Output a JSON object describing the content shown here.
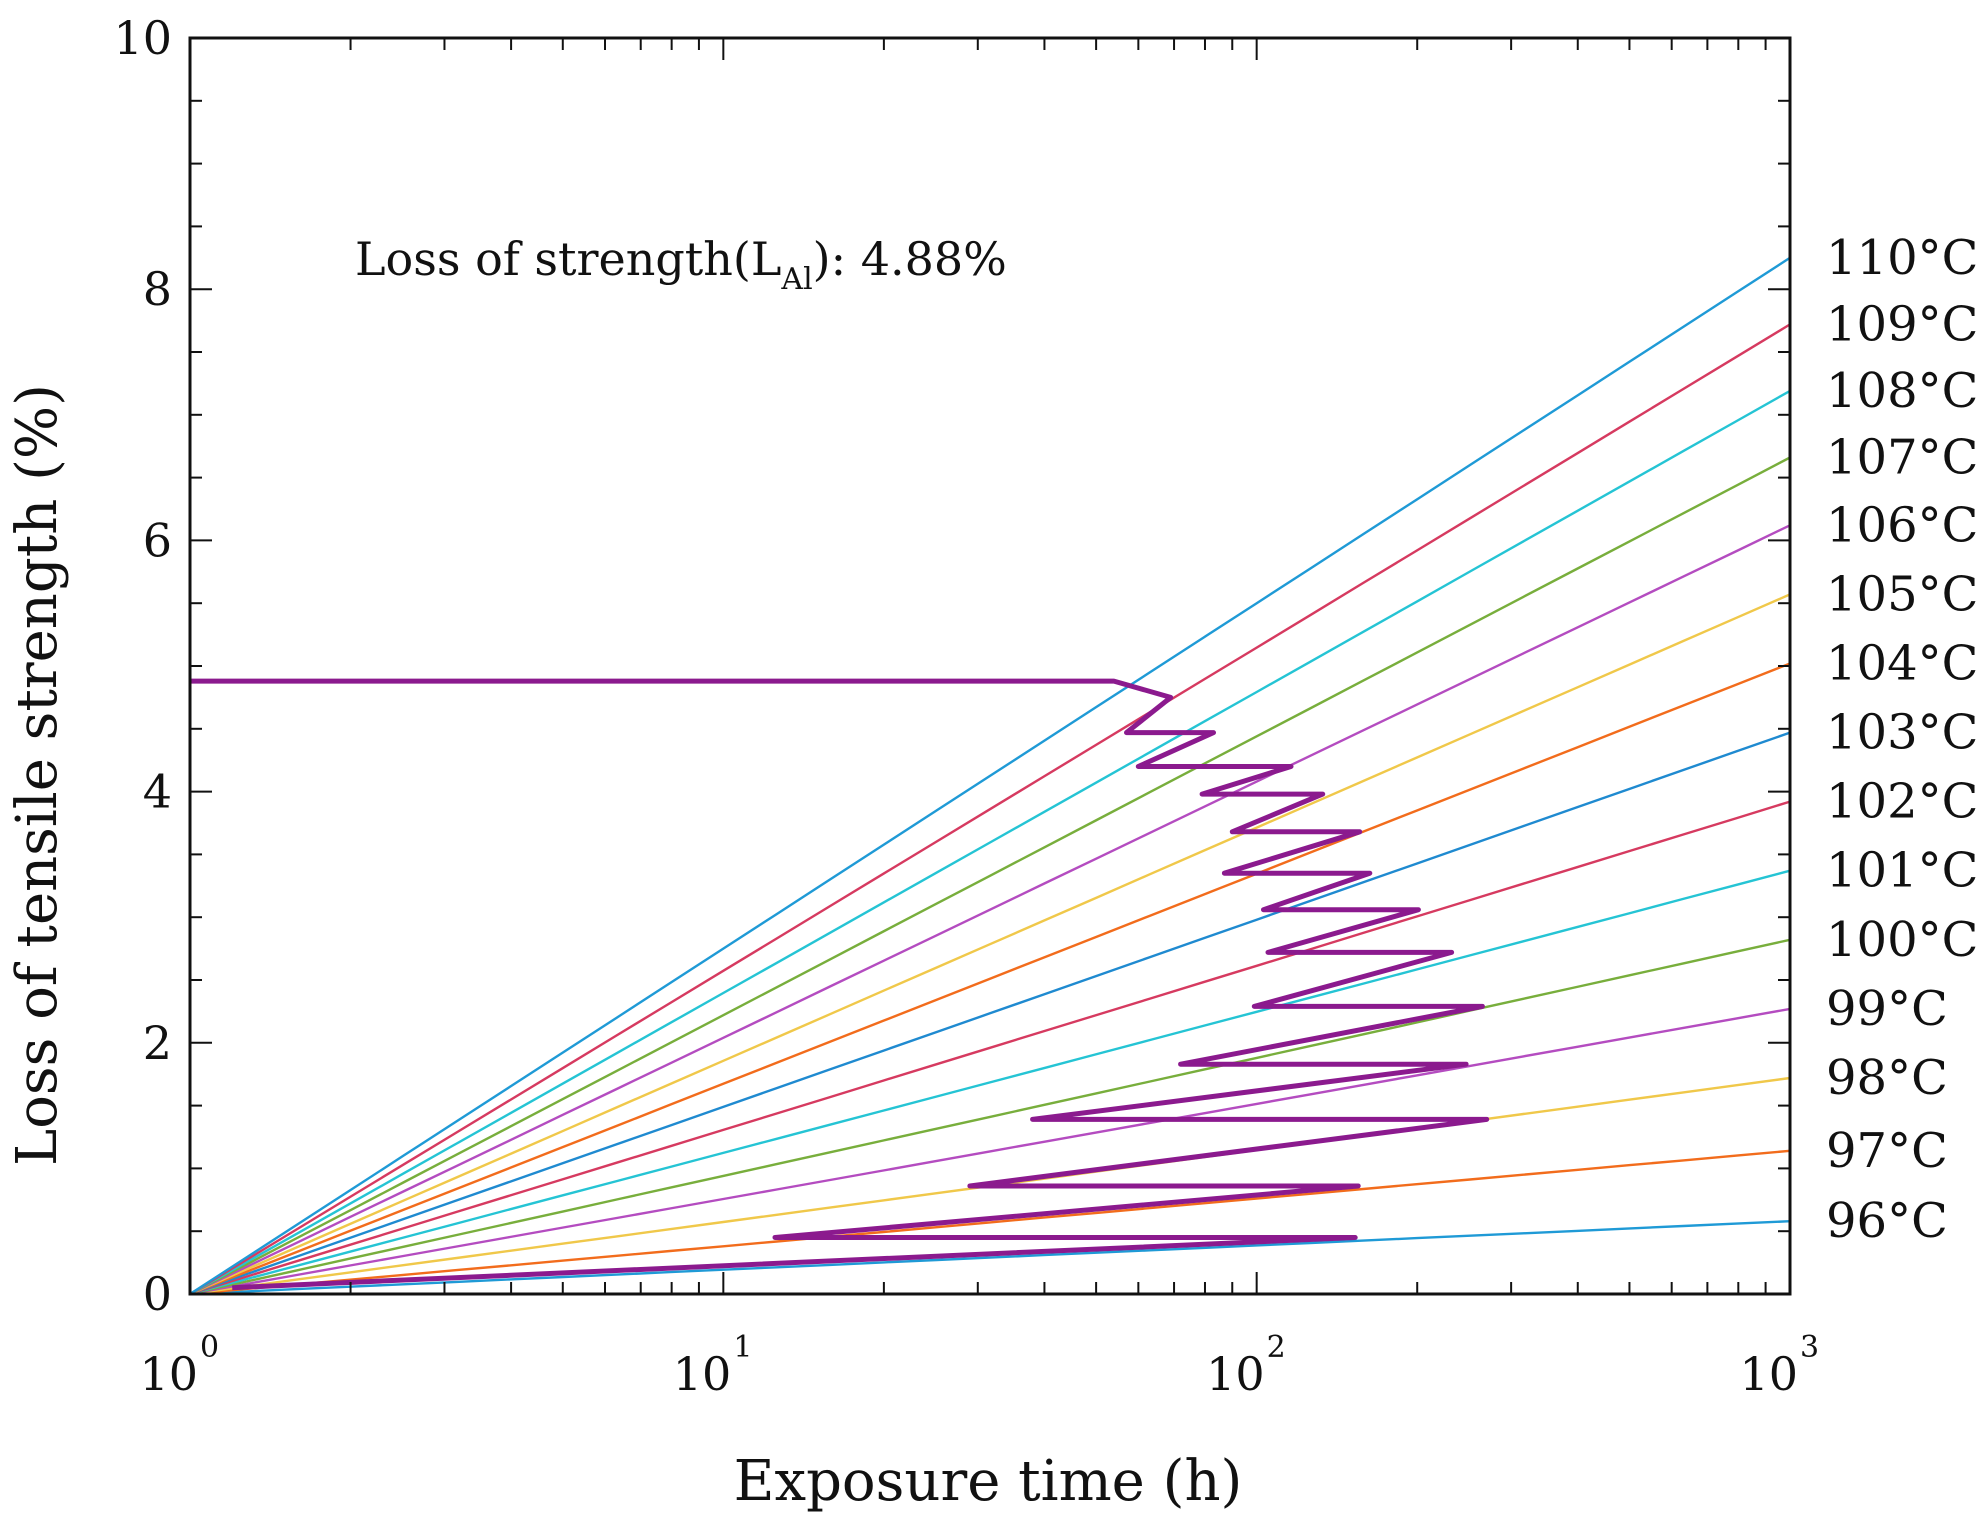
{
  "chart_data": {
    "type": "line",
    "xscale": "log",
    "xlim": [
      1,
      1000
    ],
    "ylim": [
      0,
      10
    ],
    "xlabel": "Exposure time (h)",
    "ylabel": "Loss of tensile strength (%)",
    "x_ticks": [
      {
        "base": "10",
        "exp": "0",
        "value": 1
      },
      {
        "base": "10",
        "exp": "1",
        "value": 10
      },
      {
        "base": "10",
        "exp": "2",
        "value": 100
      },
      {
        "base": "10",
        "exp": "3",
        "value": 1000
      }
    ],
    "y_ticks": [
      "0",
      "2",
      "4",
      "6",
      "8",
      "10"
    ],
    "annotation": {
      "prefix": "Loss of strength(L",
      "sub": "Al",
      "suffix": "): 4.88%"
    },
    "series": [
      {
        "name": "96°C",
        "color": "#1f9ad6",
        "y_at_1000h": 0.58
      },
      {
        "name": "97°C",
        "color": "#f26c1c",
        "y_at_1000h": 1.14
      },
      {
        "name": "98°C",
        "color": "#f0c84a",
        "y_at_1000h": 1.72
      },
      {
        "name": "99°C",
        "color": "#b44cc0",
        "y_at_1000h": 2.27
      },
      {
        "name": "100°C",
        "color": "#78ae3c",
        "y_at_1000h": 2.82
      },
      {
        "name": "101°C",
        "color": "#25c4d4",
        "y_at_1000h": 3.37
      },
      {
        "name": "102°C",
        "color": "#d63a60",
        "y_at_1000h": 3.92
      },
      {
        "name": "103°C",
        "color": "#1f8ad0",
        "y_at_1000h": 4.47
      },
      {
        "name": "104°C",
        "color": "#f26c1c",
        "y_at_1000h": 5.02
      },
      {
        "name": "105°C",
        "color": "#f0c84a",
        "y_at_1000h": 5.57
      },
      {
        "name": "106°C",
        "color": "#b44cc0",
        "y_at_1000h": 6.12
      },
      {
        "name": "107°C",
        "color": "#78ae3c",
        "y_at_1000h": 6.66
      },
      {
        "name": "108°C",
        "color": "#25c4d4",
        "y_at_1000h": 7.19
      },
      {
        "name": "109°C",
        "color": "#d63a60",
        "y_at_1000h": 7.72
      },
      {
        "name": "110°C",
        "color": "#1f9ad6",
        "y_at_1000h": 8.25
      }
    ],
    "cumulative_path": {
      "color": "#8b1a8e",
      "final_value": 4.88,
      "points": [
        [
          1.2,
          0.05
        ],
        [
          153,
          0.45
        ],
        [
          12.5,
          0.45
        ],
        [
          155,
          0.86
        ],
        [
          29,
          0.86
        ],
        [
          270,
          1.39
        ],
        [
          38,
          1.39
        ],
        [
          247,
          1.83
        ],
        [
          72,
          1.83
        ],
        [
          265,
          2.29
        ],
        [
          99,
          2.29
        ],
        [
          232,
          2.72
        ],
        [
          105,
          2.72
        ],
        [
          201,
          3.06
        ],
        [
          103,
          3.06
        ],
        [
          163,
          3.35
        ],
        [
          87,
          3.35
        ],
        [
          156,
          3.68
        ],
        [
          90,
          3.68
        ],
        [
          133,
          3.98
        ],
        [
          79,
          3.98
        ],
        [
          116,
          4.2
        ],
        [
          60,
          4.2
        ],
        [
          83,
          4.47
        ],
        [
          57,
          4.47
        ],
        [
          69,
          4.75
        ],
        [
          54,
          4.88
        ],
        [
          1,
          4.88
        ]
      ]
    }
  }
}
